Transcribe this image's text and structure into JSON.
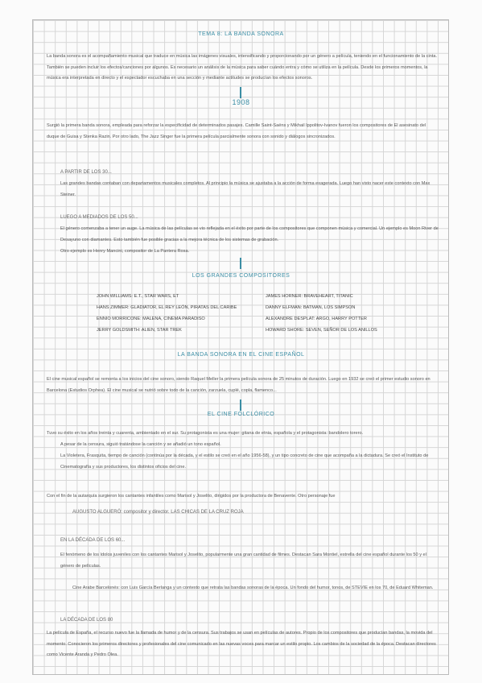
{
  "title": "TEMA 8: LA BANDA SONORA",
  "intro": "La banda sonora es el acompañamiento musical que traduce en música las imágenes visuales, intensificando y proporcionando por un género a película, teniendo en el funcionamiento de la cinta. También se pueden incluir los efectos/canciones por algunos. Es necesario un análisis de la música para saber cuándo entra y cómo se utiliza en la película. Desde los primeros momentos, la música era interpretada en directo y el espectador escuchaba en una sección y mediante actitudes se producían los efectos sonoros.",
  "year": "1908",
  "p1908": "Surgió la primera banda sonora, empleada para reforzar la especificidad de determinados pasajes. Camille Saint-Saëns y Mikhail Ippolitov-Ivanov fueron los compositores de El asesinato del duque de Guisa y Stenka Razin. Por otro lado, The Jazz Singer fue la primera película parcialmente sonora con sonido y diálogos sincronizados.",
  "h30": "A PARTIR DE LOS 30...",
  "p30": "Las grandes bandas contaban con departamentos musicales completos. Al principio la música se ajustaba a la acción de forma exagerada. Luego han visto nacer este contexto con Max Steiner.",
  "h50": "LUEGO A MEDIADOS DE LOS 50...",
  "p50": "El género comenzaba a tener un auge. La música de las películas se vio reflejada en el éxito por parte de los compositores que componen música y comercial. Un ejemplo es Moon River de Desayuno con diamantes. Esto también fue posible gracias a la mejora técnica de los sistemas de grabación.",
  "p50b": "Otro ejemplo es Henry Mancini, compositor de La Pantera Rosa.",
  "hComp": "LOS GRANDES COMPOSITORES",
  "composers": [
    "JOHN WILLIAMS: E.T., STAR WARS, ET",
    "JAMES HORNER: BRAVEHEART, TITANIC",
    "HANS ZIMMER: GLADIATOR, EL REY LEÓN, PIRATAS DEL CARIBE",
    "DANNY ELFMAN: BATMAN, LOS SIMPSON",
    "ENNIO MORRICONE: MALENA, CINEMA PARADISO",
    "ALEXANDRE DESPLAT: ARGO, HARRY POTTER",
    "JERRY GOLDSMITH: ALIEN, STAR TREK",
    "HOWARD SHORE: SEVEN, SEÑOR DE LOS ANILLOS"
  ],
  "hEsp": "LA BANDA SONORA EN EL CINE ESPAÑOL",
  "pEsp": "El cine musical español se remonta a los inicios del cine sonoro, siendo Raquel Meller la primera película sonora de 25 minutos de duración. Luego en 1932 se creó el primer estudio sonoro en Barcelona (Estudios Orphea). El cine musical se nutrió sobre todo de la canción, zarzuela, cuplé, copla, flamenco...",
  "hFol": "EL CINE FOLCLÓRICO",
  "pFol1": "Tuvo su éxito en los años treinta y cuarenta, ambientado en el sur. Su protagonista es una mujer: gitana de etnia, española y el protagonista: bandolero torero.",
  "pFol2": "A pesar de la censura, siguió tratándose la canción y se añadió un tono español.",
  "pFol3": "La Violetera, Frasquita, tiempo de canción (continúa por la década, y el estilo se creó en el año 1956-58), y un tipo concreto de cine que acompaña a la dictadura. Se creó el Instituto de Cinematografía y sus productores, los distintos oficios del cine.",
  "p60a": "Con el fin de la autarquía surgieron los cantantes infantiles como Marisol y Joselito, dirigidos por la productora de Benavente. Otro personaje fue",
  "p60b": "AUGUSTO ALGUERÓ: compositor y director. LAS CHICAS DE LA CRUZ ROJA",
  "h60": "EN LA DÉCADA DE LOS 60...",
  "p60c": "El fenómeno de los ídolos juveniles con los cantantes Marisol y Joselito, popularmente una gran cantidad de filmes. Destacan Sara Montiel, estrella del cine español durante los 50 y el género de películas.",
  "p60d": "Cine Arabe Barcelonés: con Luis García Berlanga y un contexto que retrata las bandas sonoras de la época. Un fondo del humor, tonos, de STEVIE en los 70, de Eduard Whiteman.",
  "h80": "LA DÉCADA DE LOS 80",
  "p80": "La película de España, el recurso nuevo fue la llamada de humor y de la censura. Sus trabajos se usan en películas de autores. Propio de los compositores que producían bandas, la movida del momento. Conocieron los primeros directores y profesionales del cine comunicado en las nuevas voces para marcar un estilo propio. Los cambios de la sociedad de la época. Destacan directores como Vicente Aranda y Pedro Olea."
}
